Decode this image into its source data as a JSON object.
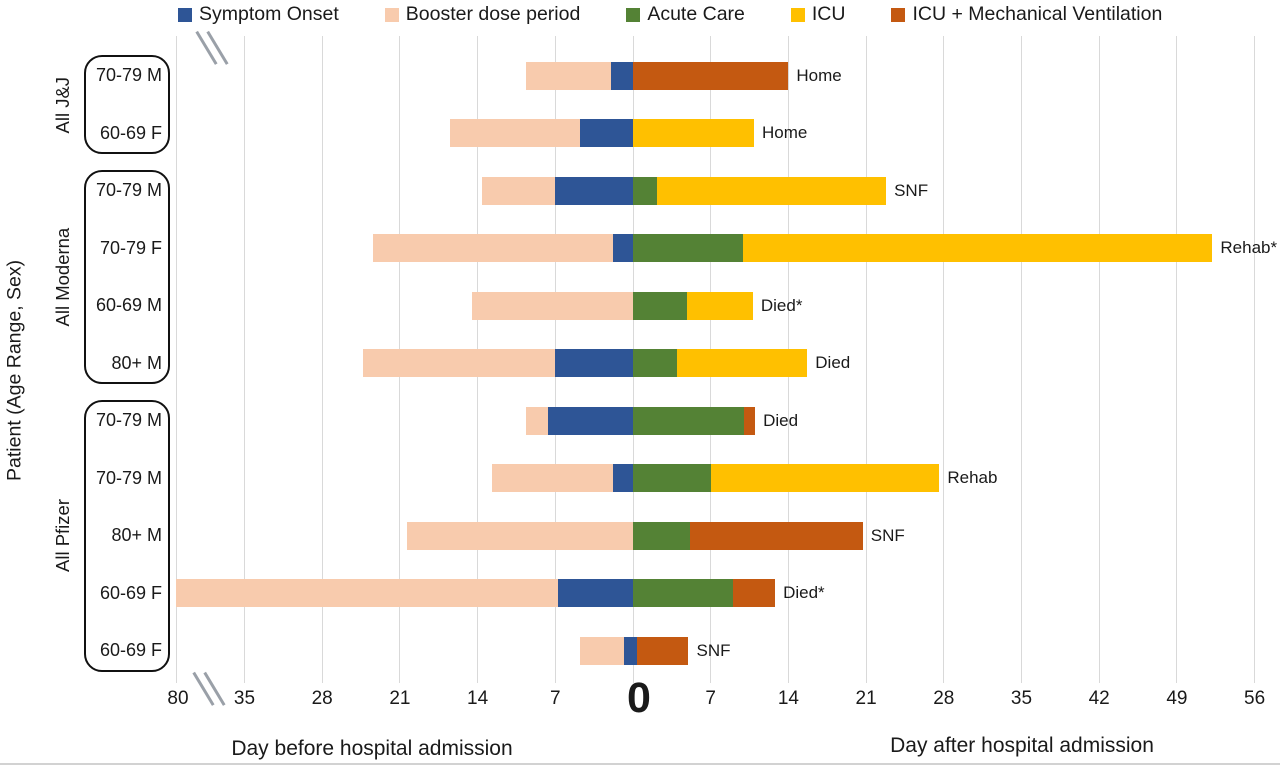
{
  "chart_data": {
    "type": "bar",
    "subtype": "horizontal-stacked-patient-timeline",
    "days_per_gridline": 7,
    "legend": [
      {
        "key": "symptom",
        "label": "Symptom Onset",
        "color": "#2E5596"
      },
      {
        "key": "booster",
        "label": "Booster dose period",
        "color": "#F8CBAD"
      },
      {
        "key": "acute",
        "label": "Acute Care",
        "color": "#548235"
      },
      {
        "key": "icu",
        "label": "ICU",
        "color": "#FFC000"
      },
      {
        "key": "icu_mv",
        "label": "ICU + Mechanical Ventilation",
        "color": "#C45911"
      }
    ],
    "axis": {
      "y_title": "Patient (Age Range, Sex)",
      "before_title": "Day before hospital admission",
      "after_title": "Day after hospital admission",
      "zero_label": "0",
      "break_label": "80",
      "ticks_before": [
        35,
        28,
        21,
        14,
        7
      ],
      "ticks_after": [
        7,
        14,
        21,
        28,
        35,
        42,
        49,
        56
      ],
      "axis_break_between": [
        -80,
        -35
      ],
      "grid_color": "#D9D9D9"
    },
    "groups": [
      {
        "label": "All J&J",
        "first_row": 0,
        "last_row": 1
      },
      {
        "label": "All Moderna",
        "first_row": 2,
        "last_row": 5
      },
      {
        "label": "All Pfizer",
        "first_row": 6,
        "last_row": 10
      }
    ],
    "rows": [
      {
        "group": "All J&J",
        "patient": "70-79 M",
        "outcome": "Home",
        "segments": [
          [
            "booster",
            -9.6,
            -2
          ],
          [
            "symptom",
            -2,
            0
          ],
          [
            "icu_mv",
            0,
            14
          ]
        ]
      },
      {
        "group": "All J&J",
        "patient": "60-69 F",
        "outcome": "Home",
        "segments": [
          [
            "booster",
            -16.5,
            -4.8
          ],
          [
            "symptom",
            -4.8,
            0
          ],
          [
            "icu",
            0,
            10.9
          ]
        ]
      },
      {
        "group": "All Moderna",
        "patient": "70-79 M",
        "outcome": "SNF",
        "segments": [
          [
            "booster",
            -13.6,
            -7
          ],
          [
            "symptom",
            -7,
            0
          ],
          [
            "acute",
            0,
            2.2
          ],
          [
            "icu",
            2.2,
            22.8
          ]
        ]
      },
      {
        "group": "All Moderna",
        "patient": "70-79 F",
        "outcome": "Rehab*",
        "segments": [
          [
            "booster",
            -23.4,
            -1.8
          ],
          [
            "symptom",
            -1.8,
            0
          ],
          [
            "acute",
            0,
            9.9
          ],
          [
            "icu",
            9.9,
            52.2
          ]
        ]
      },
      {
        "group": "All Moderna",
        "patient": "60-69 M",
        "outcome": "Died*",
        "segments": [
          [
            "booster",
            -14.5,
            0
          ],
          [
            "acute",
            0,
            4.9
          ],
          [
            "icu",
            4.9,
            10.8
          ]
        ]
      },
      {
        "group": "All Moderna",
        "patient": "80+ M",
        "outcome": "Died",
        "segments": [
          [
            "booster",
            -24.3,
            -7
          ],
          [
            "symptom",
            -7,
            0
          ],
          [
            "acute",
            0,
            4
          ],
          [
            "icu",
            4,
            15.7
          ]
        ]
      },
      {
        "group": "All Pfizer",
        "patient": "70-79 M",
        "outcome": "Died",
        "segments": [
          [
            "booster",
            -9.6,
            -7.7
          ],
          [
            "symptom",
            -7.7,
            0
          ],
          [
            "acute",
            0,
            10
          ],
          [
            "icu_mv",
            10,
            11
          ]
        ]
      },
      {
        "group": "All Pfizer",
        "patient": "70-79 M",
        "outcome": "Rehab",
        "segments": [
          [
            "booster",
            -12.7,
            -1.8
          ],
          [
            "symptom",
            -1.8,
            0
          ],
          [
            "acute",
            0,
            7
          ],
          [
            "icu",
            7,
            27.6
          ]
        ]
      },
      {
        "group": "All Pfizer",
        "patient": "80+ M",
        "outcome": "SNF",
        "segments": [
          [
            "booster",
            -20.4,
            0
          ],
          [
            "acute",
            0,
            5.1
          ],
          [
            "icu_mv",
            5.1,
            20.7
          ]
        ]
      },
      {
        "group": "All Pfizer",
        "patient": "60-69 F",
        "outcome": "Died*",
        "segments": [
          [
            "booster",
            -80,
            -6.8
          ],
          [
            "symptom",
            -6.8,
            0
          ],
          [
            "acute",
            0,
            9
          ],
          [
            "icu_mv",
            9,
            12.8
          ]
        ]
      },
      {
        "group": "All Pfizer",
        "patient": "60-69 F",
        "outcome": "SNF",
        "segments": [
          [
            "booster",
            -4.8,
            -0.8
          ],
          [
            "symptom",
            -0.8,
            0.4
          ],
          [
            "icu_mv",
            0.4,
            5
          ]
        ]
      }
    ]
  }
}
